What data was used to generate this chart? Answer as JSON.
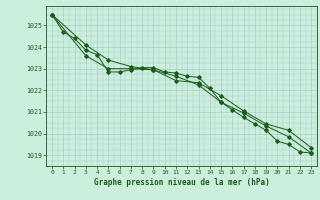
{
  "title": "Graphe pression niveau de la mer (hPa)",
  "bg_color": "#cceedd",
  "grid_color": "#aacccc",
  "line_color": "#1a5c1a",
  "x_ticks": [
    0,
    1,
    2,
    3,
    4,
    5,
    6,
    7,
    8,
    9,
    10,
    11,
    12,
    13,
    14,
    15,
    16,
    17,
    18,
    19,
    20,
    21,
    22,
    23
  ],
  "ylim": [
    1018.5,
    1025.9
  ],
  "yticks": [
    1019,
    1020,
    1021,
    1022,
    1023,
    1024,
    1025
  ],
  "series1_x": [
    0,
    1,
    2,
    3,
    4,
    5,
    6,
    7,
    8,
    9,
    10,
    11,
    12,
    13,
    14,
    15,
    16,
    17,
    18,
    19,
    20,
    21,
    22,
    23
  ],
  "series1_y": [
    1025.5,
    1024.7,
    1024.4,
    1023.85,
    1023.65,
    1022.85,
    1022.85,
    1022.95,
    1023.05,
    1023.05,
    1022.85,
    1022.8,
    1022.65,
    1022.6,
    1022.1,
    1021.45,
    1021.1,
    1020.75,
    1020.45,
    1020.15,
    1019.65,
    1019.5,
    1019.15,
    1019.1
  ],
  "series2_x": [
    0,
    3,
    5,
    7,
    9,
    11,
    13,
    15,
    17,
    19,
    21,
    23
  ],
  "series2_y": [
    1025.5,
    1024.1,
    1023.4,
    1023.1,
    1022.95,
    1022.45,
    1022.35,
    1021.75,
    1021.05,
    1020.45,
    1020.15,
    1019.35
  ],
  "series3_x": [
    0,
    3,
    5,
    7,
    9,
    11,
    13,
    15,
    17,
    19,
    21,
    23
  ],
  "series3_y": [
    1025.5,
    1023.6,
    1023.0,
    1023.0,
    1022.95,
    1022.65,
    1022.25,
    1021.45,
    1020.95,
    1020.35,
    1019.85,
    1019.1
  ]
}
